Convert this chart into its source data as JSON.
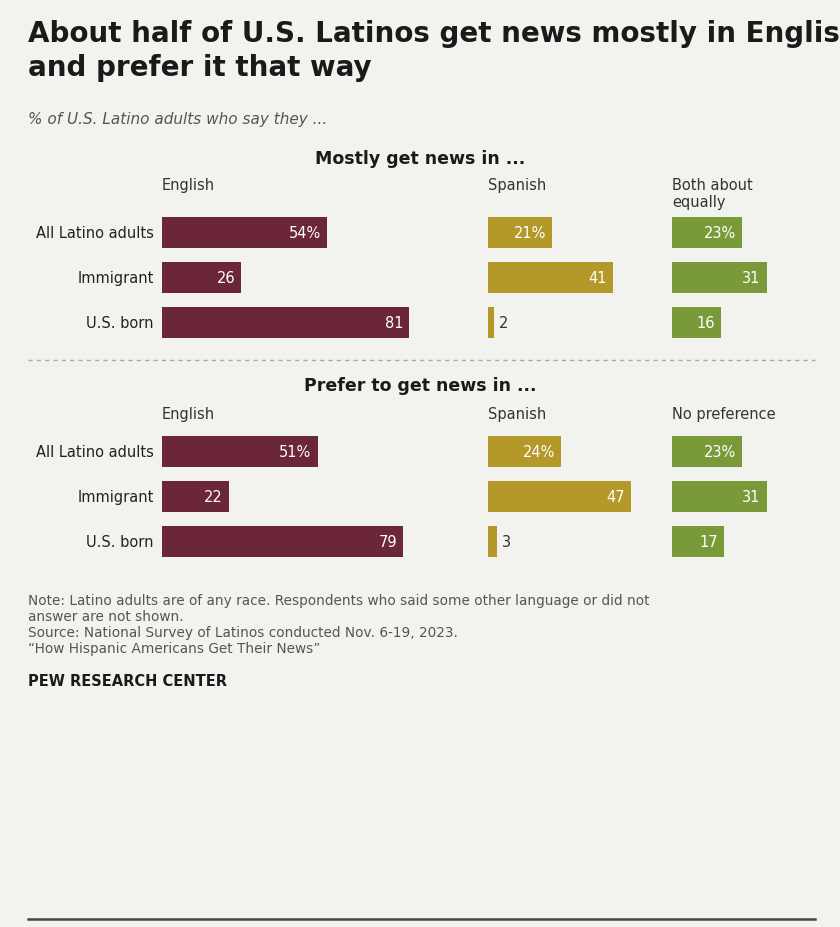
{
  "title": "About half of U.S. Latinos get news mostly in English\nand prefer it that way",
  "subtitle": "% of U.S. Latino adults who say they ...",
  "background_color": "#f2f2ee",
  "section1_title": "Mostly get news in ...",
  "section2_title": "Prefer to get news in ...",
  "col_headers1": [
    "English",
    "Spanish",
    "Both about\nequally"
  ],
  "col_headers2": [
    "English",
    "Spanish",
    "No preference"
  ],
  "row_labels": [
    "All Latino adults",
    "Immigrant",
    "U.S. born"
  ],
  "section1_data": {
    "english": [
      54,
      26,
      81
    ],
    "spanish": [
      21,
      41,
      2
    ],
    "third": [
      23,
      31,
      16
    ]
  },
  "section1_labels": {
    "english": [
      "54%",
      "26",
      "81"
    ],
    "spanish": [
      "21%",
      "41",
      "2"
    ],
    "third": [
      "23%",
      "31",
      "16"
    ]
  },
  "section2_data": {
    "english": [
      51,
      22,
      79
    ],
    "spanish": [
      24,
      47,
      3
    ],
    "third": [
      23,
      31,
      17
    ]
  },
  "section2_labels": {
    "english": [
      "51%",
      "22",
      "79"
    ],
    "spanish": [
      "24%",
      "47",
      "3"
    ],
    "third": [
      "23%",
      "31",
      "17"
    ]
  },
  "color_english": "#6b2737",
  "color_spanish": "#b5982a",
  "color_third": "#7a9a3a",
  "note_line1": "Note: Latino adults are of any race. Respondents who said some other language or did not",
  "note_line2": "answer are not shown.",
  "note_line3": "Source: National Survey of Latinos conducted Nov. 6-19, 2023.",
  "note_line4": "“How Hispanic Americans Get Their News”",
  "source_bold": "PEW RESEARCH CENTER"
}
